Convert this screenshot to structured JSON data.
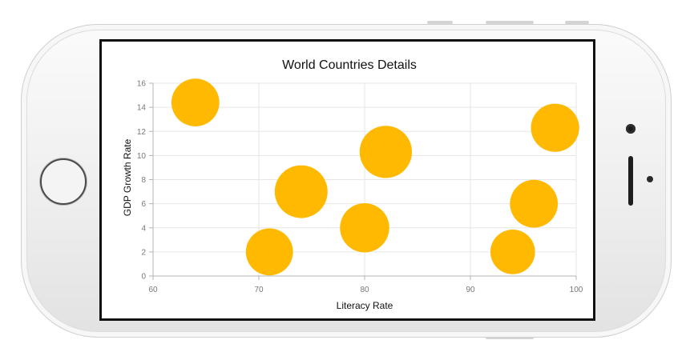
{
  "chart_data": {
    "type": "bubble",
    "title": "World Countries Details",
    "xlabel": "Literacy Rate",
    "ylabel": "GDP Growth Rate",
    "xlim": [
      60,
      100
    ],
    "ylim": [
      0,
      16
    ],
    "x_ticks": [
      60,
      70,
      80,
      90,
      100
    ],
    "y_ticks": [
      0,
      2,
      4,
      6,
      8,
      10,
      12,
      14,
      16
    ],
    "grid": true,
    "bubble_color": "#FFB900",
    "points": [
      {
        "x": 64,
        "y": 14.4,
        "size": 0.6
      },
      {
        "x": 71,
        "y": 2.0,
        "size": 0.55
      },
      {
        "x": 74,
        "y": 7.0,
        "size": 1.0
      },
      {
        "x": 80,
        "y": 4.0,
        "size": 0.7
      },
      {
        "x": 82,
        "y": 10.3,
        "size": 0.95
      },
      {
        "x": 94,
        "y": 2.0,
        "size": 0.4
      },
      {
        "x": 96,
        "y": 6.0,
        "size": 0.6
      },
      {
        "x": 98,
        "y": 12.3,
        "size": 0.63
      }
    ]
  }
}
